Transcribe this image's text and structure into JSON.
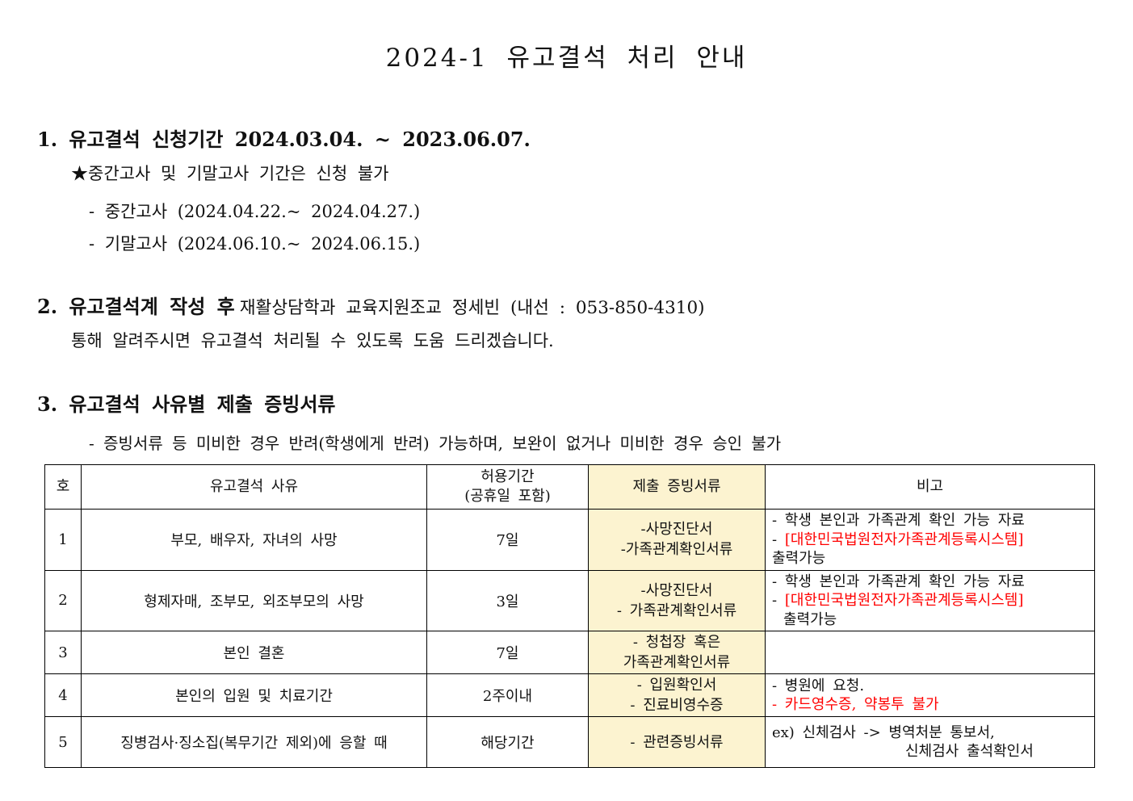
{
  "page_title": "2024-1 유고결석 처리 안내",
  "section1": {
    "heading": "1. 유고결석 신청기간 2024.03.04. ~ 2023.06.07.",
    "star_note": "★중간고사 및 기말고사 기간은 신청 불가",
    "bullet_midterm": "- 중간고사 (2024.04.22.~ 2024.04.27.)",
    "bullet_final": "- 기말고사 (2024.06.10.~ 2024.06.15.)"
  },
  "section2": {
    "heading_bold": "2. 유고결석계 작성 후",
    "heading_rest": "재활상담학과 교육지원조교 정세빈 (내선 : 053-850-4310)",
    "line2": "통해 알려주시면 유고결석 처리될 수 있도록 도움 드리겠습니다."
  },
  "section3": {
    "heading": "3. 유고결석 사유별 제출 증빙서류",
    "bullet": "- 증빙서류 등 미비한 경우 반려(학생에게 반려) 가능하며, 보완이 없거나 미비한 경우 승인 불가"
  },
  "table": {
    "highlight_color": "#fcf3d0",
    "red_color": "#ff0000",
    "headers": [
      "호",
      "유고결석 사유",
      "허용기간\n(공휴일 포함)",
      "제출 증빙서류",
      "비고"
    ],
    "rows": [
      {
        "no": "1",
        "reason": "부모, 배우자, 자녀의 사망",
        "period": "7일",
        "docs": [
          "-사망진단서",
          "-가족관계확인서류"
        ],
        "notes": [
          {
            "segs": [
              {
                "t": "- 학생 본인과 가족관계 확인 가능 자료",
                "red": false
              }
            ]
          },
          {
            "segs": [
              {
                "t": "- ",
                "red": false
              },
              {
                "t": "[대한민국법원전자가족관계등록시스템]",
                "red": true
              }
            ]
          },
          {
            "segs": [
              {
                "t": "출력가능",
                "red": false
              }
            ]
          }
        ]
      },
      {
        "no": "2",
        "reason": "형제자매, 조부모, 외조부모의 사망",
        "period": "3일",
        "docs": [
          "-사망진단서",
          "- 가족관계확인서류"
        ],
        "notes": [
          {
            "segs": [
              {
                "t": "- 학생 본인과 가족관계 확인 가능 자료",
                "red": false
              }
            ]
          },
          {
            "segs": [
              {
                "t": "- ",
                "red": false
              },
              {
                "t": "[대한민국법원전자가족관계등록시스템]",
                "red": true
              }
            ]
          },
          {
            "segs": [
              {
                "t": "출력가능",
                "red": false
              }
            ],
            "ind": 14
          }
        ]
      },
      {
        "no": "3",
        "reason": "본인 결혼",
        "period": "7일",
        "docs": [
          "- 청첩장 혹은",
          "가족관계확인서류"
        ],
        "notes": []
      },
      {
        "no": "4",
        "reason": "본인의 입원 및 치료기간",
        "period": "2주이내",
        "docs": [
          "- 입원확인서",
          "- 진료비영수증"
        ],
        "notes": [
          {
            "segs": [
              {
                "t": "- 병원에 요청.",
                "red": false
              }
            ]
          },
          {
            "segs": [
              {
                "t": "- 카드영수증, 약봉투 불가",
                "red": true
              }
            ]
          }
        ]
      },
      {
        "no": "5",
        "reason": "징병검사·징소집(복무기간 제외)에 응할 때",
        "period": "해당기간",
        "docs": [
          "- 관련증빙서류"
        ],
        "notes": [
          {
            "segs": [
              {
                "t": "ex) 신체검사 -> 병역처분 통보서,",
                "red": false
              }
            ]
          },
          {
            "segs": [
              {
                "t": "신체검사 출석확인서",
                "red": false
              }
            ],
            "ind": 165
          }
        ]
      }
    ]
  }
}
